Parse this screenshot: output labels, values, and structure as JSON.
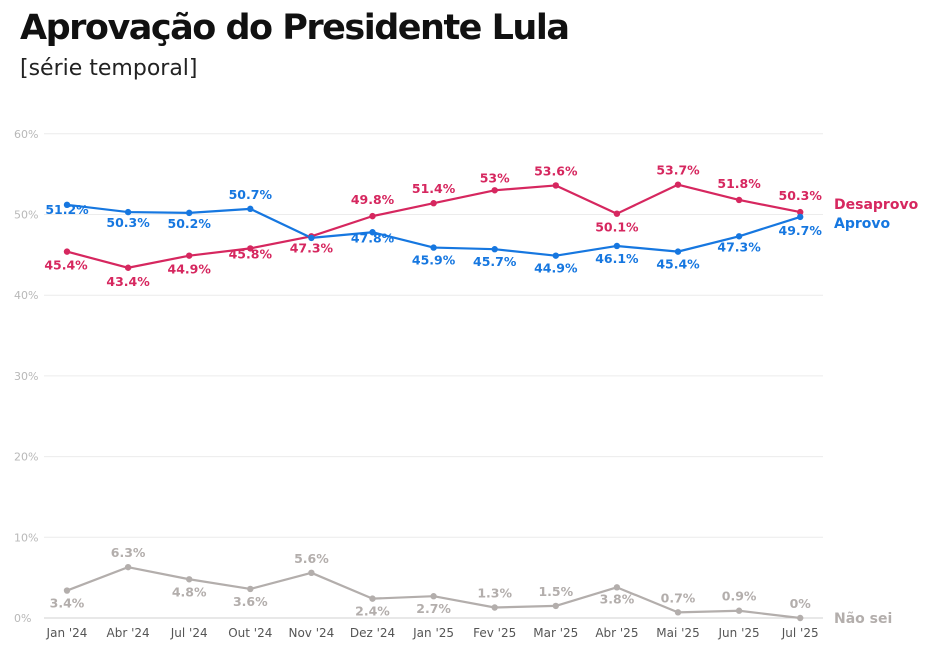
{
  "header": {
    "title": "Aprovação do Presidente Lula",
    "subtitle": "[série temporal]"
  },
  "chart_data": {
    "type": "line",
    "title": "Aprovação do Presidente Lula",
    "subtitle": "[série temporal]",
    "categories": [
      "Jan '24",
      "Abr '24",
      "Jul '24",
      "Out '24",
      "Nov '24",
      "Dez '24",
      "Jan '25",
      "Fev '25",
      "Mar '25",
      "Abr '25",
      "Mai '25",
      "Jun '25",
      "Jul '25"
    ],
    "y_ticks": [
      "0%",
      "10%",
      "20%",
      "30%",
      "40%",
      "50%",
      "60%"
    ],
    "ylim": [
      0,
      60
    ],
    "grid": true,
    "legend": "end-of-line labels",
    "series": [
      {
        "name": "Desaprovo",
        "color": "#d6275f",
        "values": [
          45.4,
          43.4,
          44.9,
          45.8,
          47.3,
          49.8,
          51.4,
          53,
          53.6,
          50.1,
          53.7,
          51.8,
          50.3
        ],
        "labels": [
          "45.4%",
          "43.4%",
          "44.9%",
          "45.8%",
          "47.3%",
          "49.8%",
          "51.4%",
          "53%",
          "53.6%",
          "50.1%",
          "53.7%",
          "51.8%",
          "50.3%"
        ]
      },
      {
        "name": "Aprovo",
        "color": "#1677e0",
        "values": [
          51.2,
          50.3,
          50.2,
          50.7,
          47.1,
          47.8,
          45.9,
          45.7,
          44.9,
          46.1,
          45.4,
          47.3,
          49.7
        ],
        "labels": [
          "51.2%",
          "50.3%",
          "50.2%",
          "50.7%",
          "",
          "47.8%",
          "45.9%",
          "45.7%",
          "44.9%",
          "46.1%",
          "45.4%",
          "47.3%",
          "49.7%"
        ]
      },
      {
        "name": "Não sei",
        "color": "#b3aeac",
        "values": [
          3.4,
          6.3,
          4.8,
          3.6,
          5.6,
          2.4,
          2.7,
          1.3,
          1.5,
          3.8,
          0.7,
          0.9,
          0
        ],
        "labels": [
          "3.4%",
          "6.3%",
          "4.8%",
          "3.6%",
          "5.6%",
          "2.4%",
          "2.7%",
          "1.3%",
          "1.5%",
          "3.8%",
          "0.7%",
          "0.9%",
          "0%"
        ]
      }
    ]
  }
}
